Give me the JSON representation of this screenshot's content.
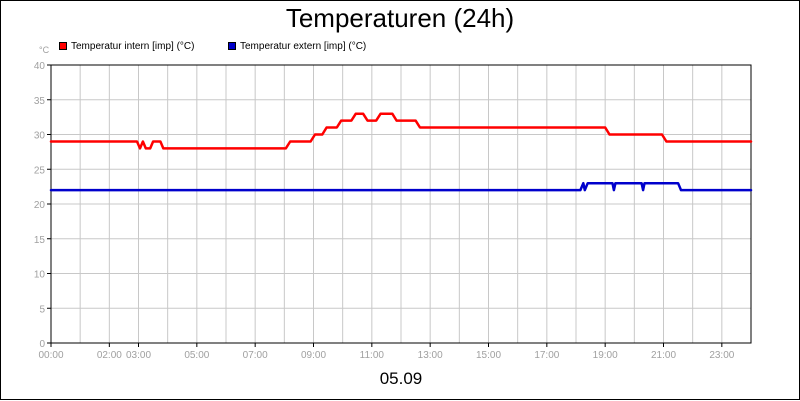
{
  "chart_data": {
    "type": "line",
    "title": "Temperaturen (24h)",
    "ylabel": "°C",
    "xlabel": "05.09",
    "ylim": [
      0,
      40
    ],
    "yticks": [
      "0",
      "5",
      "10",
      "15",
      "20",
      "25",
      "30",
      "35",
      "40"
    ],
    "xlim": [
      0,
      24
    ],
    "xticks": [
      {
        "t": 0,
        "label": "00:00"
      },
      {
        "t": 2,
        "label": "02:00"
      },
      {
        "t": 3,
        "label": "03:00"
      },
      {
        "t": 5,
        "label": "05:00"
      },
      {
        "t": 7,
        "label": "07:00"
      },
      {
        "t": 9,
        "label": "09:00"
      },
      {
        "t": 11,
        "label": "11:00"
      },
      {
        "t": 13,
        "label": "13:00"
      },
      {
        "t": 15,
        "label": "15:00"
      },
      {
        "t": 17,
        "label": "17:00"
      },
      {
        "t": 19,
        "label": "19:00"
      },
      {
        "t": 21,
        "label": "21:00"
      },
      {
        "t": 23,
        "label": "23:00"
      }
    ],
    "grid": true,
    "legend_position": "top-left",
    "series": [
      {
        "name": "Temperatur intern [imp] (°C)",
        "color": "#ff0000",
        "points": [
          [
            0.0,
            29
          ],
          [
            2.95,
            29
          ],
          [
            3.05,
            28
          ],
          [
            3.15,
            29
          ],
          [
            3.25,
            28
          ],
          [
            3.4,
            28
          ],
          [
            3.5,
            29
          ],
          [
            3.75,
            29
          ],
          [
            3.85,
            28
          ],
          [
            8.05,
            28
          ],
          [
            8.2,
            29
          ],
          [
            8.9,
            29
          ],
          [
            9.05,
            30
          ],
          [
            9.3,
            30
          ],
          [
            9.45,
            31
          ],
          [
            9.8,
            31
          ],
          [
            9.95,
            32
          ],
          [
            10.3,
            32
          ],
          [
            10.45,
            33
          ],
          [
            10.7,
            33
          ],
          [
            10.85,
            32
          ],
          [
            11.15,
            32
          ],
          [
            11.3,
            33
          ],
          [
            11.7,
            33
          ],
          [
            11.85,
            32
          ],
          [
            12.5,
            32
          ],
          [
            12.65,
            31
          ],
          [
            19.0,
            31
          ],
          [
            19.15,
            30
          ],
          [
            20.95,
            30
          ],
          [
            21.1,
            29
          ],
          [
            24.0,
            29
          ]
        ]
      },
      {
        "name": "Temperatur extern [imp] (°C)",
        "color": "#0000cc",
        "points": [
          [
            0.0,
            22
          ],
          [
            18.15,
            22
          ],
          [
            18.25,
            23
          ],
          [
            18.3,
            22
          ],
          [
            18.4,
            23
          ],
          [
            19.25,
            23
          ],
          [
            19.3,
            22
          ],
          [
            19.35,
            23
          ],
          [
            20.25,
            23
          ],
          [
            20.3,
            22
          ],
          [
            20.35,
            23
          ],
          [
            21.5,
            23
          ],
          [
            21.6,
            22
          ],
          [
            24.0,
            22
          ]
        ]
      }
    ]
  }
}
